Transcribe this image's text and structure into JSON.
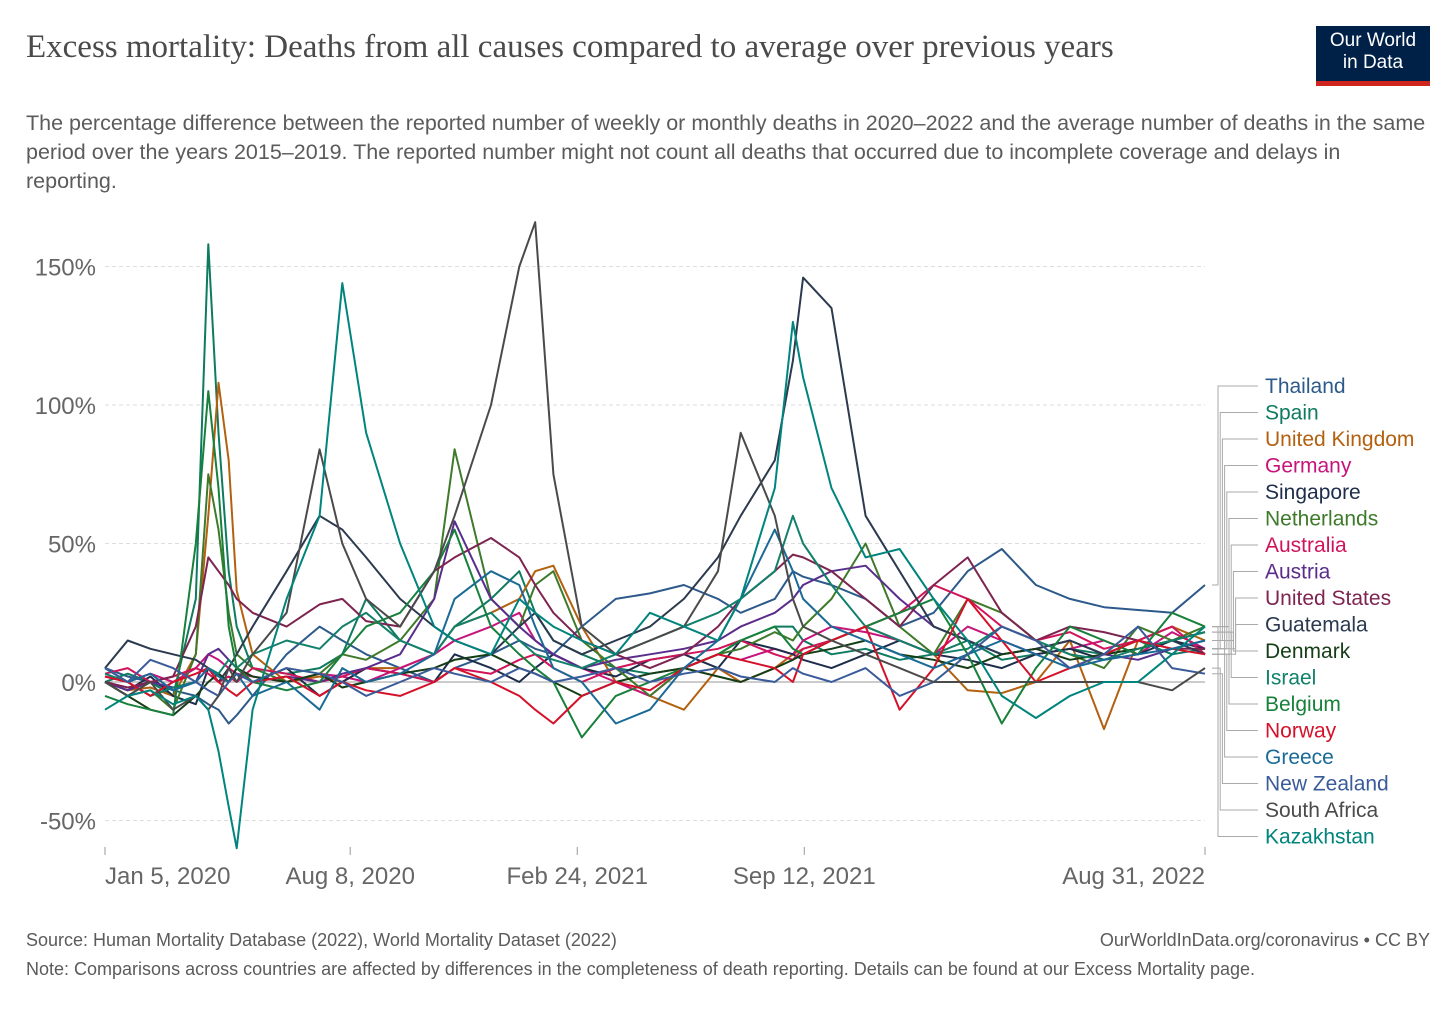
{
  "title": "Excess mortality: Deaths from all causes compared to average over previous years",
  "subtitle": "The percentage difference between the reported number of weekly or monthly deaths in 2020–2022 and the average number of deaths in the same period over the years 2015–2019. The reported number might not count all deaths that occurred due to incomplete coverage and delays in reporting.",
  "logo": {
    "line1": "Our World",
    "line2": "in Data"
  },
  "footer": {
    "source": "Source: Human Mortality Database (2022), World Mortality Dataset (2022)",
    "credit": "OurWorldInData.org/coronavirus • CC BY",
    "note": "Note: Comparisons across countries are affected by differences in the completeness of death reporting. Details can be found at our Excess Mortality page."
  },
  "chart_data": {
    "type": "line",
    "title": "Excess mortality: Deaths from all causes compared to average over previous years",
    "xlabel": "",
    "ylabel": "",
    "x_unit": "days since Jan 5, 2020",
    "xlim": [
      0,
      969
    ],
    "ylim": [
      -60,
      170
    ],
    "x_ticks": [
      {
        "value": 0,
        "label": "Jan 5, 2020"
      },
      {
        "value": 216,
        "label": "Aug 8, 2020"
      },
      {
        "value": 416,
        "label": "Feb 24, 2021"
      },
      {
        "value": 616,
        "label": "Sep 12, 2021"
      },
      {
        "value": 969,
        "label": "Aug 31, 2022"
      }
    ],
    "y_ticks": [
      {
        "value": -50,
        "label": "-50%"
      },
      {
        "value": 0,
        "label": "0%"
      },
      {
        "value": 50,
        "label": "50%"
      },
      {
        "value": 100,
        "label": "100%"
      },
      {
        "value": 150,
        "label": "150%"
      }
    ],
    "grid": true,
    "legend_placement": "right",
    "x": [
      0,
      20,
      40,
      60,
      80,
      91,
      100,
      109,
      116,
      130,
      160,
      189,
      209,
      230,
      260,
      290,
      308,
      340,
      365,
      379,
      395,
      420,
      450,
      480,
      510,
      540,
      560,
      590,
      606,
      615,
      640,
      670,
      700,
      730,
      760,
      790,
      820,
      850,
      880,
      910,
      940,
      969
    ],
    "series": [
      {
        "name": "Thailand",
        "color": "#2d5a8a",
        "values": [
          5,
          2,
          0,
          -3,
          -5,
          -8,
          -10,
          -15,
          -12,
          -5,
          10,
          20,
          15,
          10,
          5,
          0,
          5,
          10,
          15,
          12,
          10,
          20,
          30,
          32,
          35,
          30,
          25,
          30,
          40,
          38,
          35,
          30,
          20,
          25,
          40,
          48,
          35,
          30,
          27,
          26,
          25,
          35
        ]
      },
      {
        "name": "Spain",
        "color": "#0e7a5f",
        "values": [
          0,
          3,
          0,
          -5,
          30,
          158,
          90,
          40,
          20,
          5,
          3,
          5,
          10,
          30,
          15,
          10,
          20,
          30,
          40,
          25,
          15,
          10,
          5,
          3,
          5,
          10,
          15,
          20,
          20,
          15,
          10,
          12,
          8,
          10,
          15,
          8,
          10,
          12,
          10,
          15,
          10,
          12
        ]
      },
      {
        "name": "United Kingdom",
        "color": "#b3600f",
        "values": [
          0,
          -3,
          -2,
          -5,
          10,
          60,
          108,
          80,
          33,
          10,
          0,
          2,
          0,
          5,
          5,
          10,
          20,
          25,
          30,
          40,
          42,
          20,
          0,
          -5,
          -10,
          5,
          0,
          5,
          10,
          12,
          15,
          20,
          15,
          10,
          -3,
          -4,
          0,
          15,
          -17,
          15,
          20,
          15
        ]
      },
      {
        "name": "Germany",
        "color": "#c7137c",
        "values": [
          2,
          0,
          3,
          0,
          5,
          10,
          8,
          5,
          3,
          2,
          0,
          3,
          2,
          0,
          5,
          10,
          15,
          20,
          25,
          15,
          10,
          5,
          0,
          -5,
          5,
          10,
          8,
          12,
          10,
          15,
          20,
          18,
          15,
          10,
          20,
          15,
          10,
          12,
          15,
          10,
          18,
          12
        ]
      },
      {
        "name": "Singapore",
        "color": "#1d2d4a",
        "values": [
          0,
          -3,
          2,
          -5,
          -8,
          5,
          3,
          0,
          5,
          0,
          5,
          -5,
          0,
          5,
          3,
          0,
          10,
          5,
          0,
          5,
          10,
          5,
          2,
          8,
          10,
          5,
          15,
          12,
          10,
          8,
          5,
          10,
          15,
          10,
          8,
          5,
          10,
          12,
          8,
          10,
          15,
          12
        ]
      },
      {
        "name": "Netherlands",
        "color": "#3e7a2a",
        "values": [
          0,
          -5,
          -3,
          -10,
          10,
          75,
          55,
          25,
          10,
          5,
          0,
          3,
          10,
          8,
          15,
          30,
          84,
          30,
          20,
          35,
          40,
          15,
          5,
          -5,
          5,
          10,
          12,
          18,
          15,
          20,
          30,
          50,
          20,
          10,
          30,
          25,
          15,
          10,
          5,
          20,
          15,
          20
        ]
      },
      {
        "name": "Australia",
        "color": "#d1135a",
        "values": [
          3,
          5,
          0,
          2,
          5,
          3,
          0,
          2,
          0,
          5,
          3,
          0,
          2,
          5,
          3,
          0,
          5,
          3,
          8,
          10,
          5,
          0,
          5,
          8,
          10,
          12,
          15,
          10,
          8,
          12,
          15,
          20,
          25,
          35,
          30,
          20,
          15,
          18,
          12,
          15,
          20,
          10
        ]
      },
      {
        "name": "Austria",
        "color": "#5a2d8c",
        "values": [
          0,
          -3,
          0,
          -2,
          0,
          10,
          12,
          8,
          5,
          0,
          2,
          0,
          3,
          5,
          10,
          30,
          58,
          30,
          20,
          15,
          10,
          5,
          8,
          10,
          12,
          15,
          20,
          25,
          30,
          35,
          40,
          42,
          30,
          20,
          15,
          10,
          12,
          15,
          10,
          8,
          12,
          15
        ]
      },
      {
        "name": "United States",
        "color": "#7d2450",
        "values": [
          0,
          -2,
          0,
          2,
          20,
          45,
          40,
          35,
          30,
          25,
          20,
          28,
          30,
          22,
          20,
          40,
          45,
          52,
          45,
          35,
          25,
          15,
          10,
          5,
          10,
          20,
          30,
          40,
          46,
          45,
          40,
          30,
          20,
          35,
          45,
          25,
          15,
          20,
          18,
          15,
          12,
          12
        ]
      },
      {
        "name": "Guatemala",
        "color": "#2b3a4e",
        "values": [
          5,
          15,
          12,
          10,
          8,
          5,
          0,
          5,
          10,
          20,
          40,
          60,
          55,
          45,
          30,
          20,
          15,
          10,
          20,
          25,
          15,
          10,
          15,
          20,
          30,
          45,
          60,
          80,
          116,
          146,
          135,
          60,
          40,
          20,
          15,
          10,
          12,
          15,
          10,
          12,
          15,
          10
        ]
      },
      {
        "name": "Denmark",
        "color": "#153d16",
        "values": [
          0,
          -5,
          -10,
          -12,
          -5,
          0,
          3,
          0,
          5,
          2,
          0,
          3,
          -2,
          0,
          3,
          5,
          8,
          10,
          5,
          3,
          0,
          -5,
          0,
          3,
          5,
          2,
          0,
          5,
          8,
          10,
          12,
          15,
          10,
          8,
          5,
          10,
          12,
          8,
          10,
          12,
          15,
          18
        ]
      },
      {
        "name": "Israel",
        "color": "#12806b",
        "values": [
          3,
          0,
          -5,
          -2,
          0,
          5,
          3,
          8,
          5,
          10,
          15,
          12,
          20,
          25,
          15,
          10,
          20,
          25,
          15,
          10,
          8,
          5,
          10,
          15,
          20,
          25,
          30,
          40,
          60,
          50,
          35,
          20,
          15,
          10,
          12,
          20,
          15,
          10,
          8,
          12,
          15,
          18
        ]
      },
      {
        "name": "Belgium",
        "color": "#17803b",
        "values": [
          -5,
          -8,
          -10,
          -12,
          50,
          105,
          70,
          20,
          5,
          0,
          -3,
          0,
          10,
          20,
          25,
          40,
          55,
          20,
          10,
          5,
          0,
          -20,
          -5,
          0,
          5,
          10,
          15,
          20,
          12,
          10,
          15,
          20,
          25,
          30,
          10,
          -15,
          5,
          20,
          15,
          10,
          25,
          20
        ]
      },
      {
        "name": "Norway",
        "color": "#d5112a",
        "values": [
          2,
          0,
          -5,
          0,
          3,
          5,
          0,
          -3,
          -5,
          0,
          2,
          -5,
          0,
          -3,
          -5,
          0,
          5,
          0,
          -5,
          -10,
          -15,
          -5,
          0,
          -3,
          5,
          10,
          8,
          5,
          0,
          10,
          15,
          20,
          -10,
          5,
          30,
          15,
          0,
          5,
          10,
          15,
          12,
          10
        ]
      },
      {
        "name": "Greece",
        "color": "#1a6a96",
        "values": [
          5,
          0,
          3,
          -3,
          0,
          5,
          2,
          0,
          3,
          -5,
          0,
          -10,
          5,
          0,
          3,
          10,
          30,
          40,
          35,
          20,
          5,
          0,
          -15,
          -10,
          5,
          15,
          30,
          55,
          40,
          30,
          20,
          15,
          10,
          5,
          10,
          15,
          10,
          5,
          8,
          10,
          12,
          15
        ]
      },
      {
        "name": "New Zealand",
        "color": "#3a5b9a",
        "values": [
          5,
          0,
          8,
          5,
          0,
          -3,
          -5,
          0,
          3,
          0,
          5,
          3,
          0,
          -5,
          0,
          5,
          3,
          0,
          5,
          3,
          0,
          2,
          5,
          0,
          3,
          5,
          2,
          0,
          5,
          3,
          0,
          5,
          -5,
          0,
          10,
          20,
          15,
          5,
          10,
          20,
          5,
          3
        ]
      },
      {
        "name": "South Africa",
        "color": "#4a4a4a",
        "values": [
          0,
          -5,
          0,
          -10,
          -5,
          -10,
          -5,
          5,
          0,
          10,
          25,
          84,
          50,
          30,
          20,
          40,
          60,
          100,
          150,
          166,
          75,
          20,
          10,
          15,
          20,
          40,
          90,
          60,
          30,
          20,
          15,
          10,
          5,
          0,
          0,
          0,
          0,
          0,
          0,
          0,
          -3,
          5
        ]
      },
      {
        "name": "Kazakhstan",
        "color": "#00847e",
        "values": [
          -10,
          -5,
          -3,
          -8,
          -5,
          -10,
          -25,
          -45,
          -60,
          -10,
          30,
          60,
          144,
          90,
          50,
          20,
          15,
          10,
          30,
          25,
          20,
          15,
          10,
          25,
          20,
          15,
          30,
          70,
          130,
          110,
          70,
          45,
          48,
          30,
          15,
          -5,
          -13,
          -5,
          0,
          0,
          10,
          20
        ]
      }
    ]
  }
}
